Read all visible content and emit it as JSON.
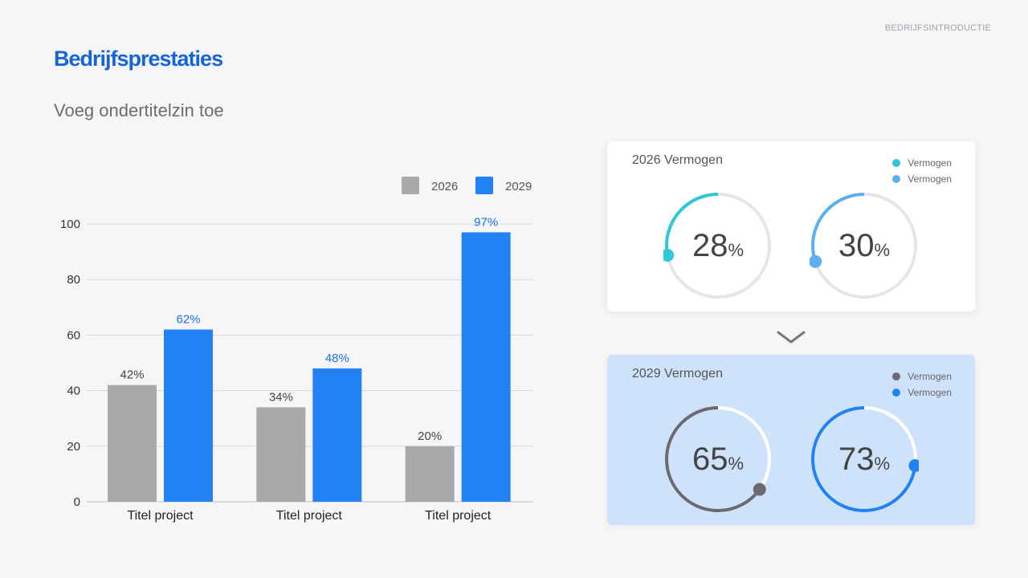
{
  "header": {
    "tag": "BEDRIJFSINTRODUCTIE",
    "title": "Bedrijfsprestaties",
    "subtitle": "Voeg ondertitelzin toe"
  },
  "chart_data": {
    "type": "bar",
    "categories": [
      "Titel project",
      "Titel project",
      "Titel project"
    ],
    "series": [
      {
        "name": "2026",
        "values": [
          42,
          34,
          20
        ],
        "labels": [
          "42%",
          "34%",
          "20%"
        ],
        "color": "#a9a8ab",
        "label_color": "#444444"
      },
      {
        "name": "2029",
        "values": [
          62,
          48,
          97
        ],
        "labels": [
          "62%",
          "48%",
          "97%"
        ],
        "color": "#2282f4",
        "label_color": "#1a73e0"
      }
    ],
    "yticks": [
      0,
      20,
      40,
      60,
      80,
      100
    ],
    "ylim": [
      0,
      100
    ],
    "grid": true,
    "legend": "top-right"
  },
  "cards": {
    "c2026": {
      "title": "2026 Vermogen",
      "legend": [
        {
          "label": "Vermogen",
          "color": "#2ec8d8"
        },
        {
          "label": "Vermogen",
          "color": "#5ab0f0"
        }
      ],
      "gauges": [
        {
          "value": 28,
          "value_text": "28",
          "unit": "%",
          "color": "#2ec8d8"
        },
        {
          "value": 30,
          "value_text": "30",
          "unit": "%",
          "color": "#5ab0f0"
        }
      ]
    },
    "c2029": {
      "title": "2029 Vermogen",
      "legend": [
        {
          "label": "Vermogen",
          "color": "#6b6b6f"
        },
        {
          "label": "Vermogen",
          "color": "#2282f4"
        }
      ],
      "gauges": [
        {
          "value": 65,
          "value_text": "65",
          "unit": "%",
          "color": "#6b6b6f"
        },
        {
          "value": 73,
          "value_text": "73",
          "unit": "%",
          "color": "#2282f4"
        }
      ]
    }
  }
}
